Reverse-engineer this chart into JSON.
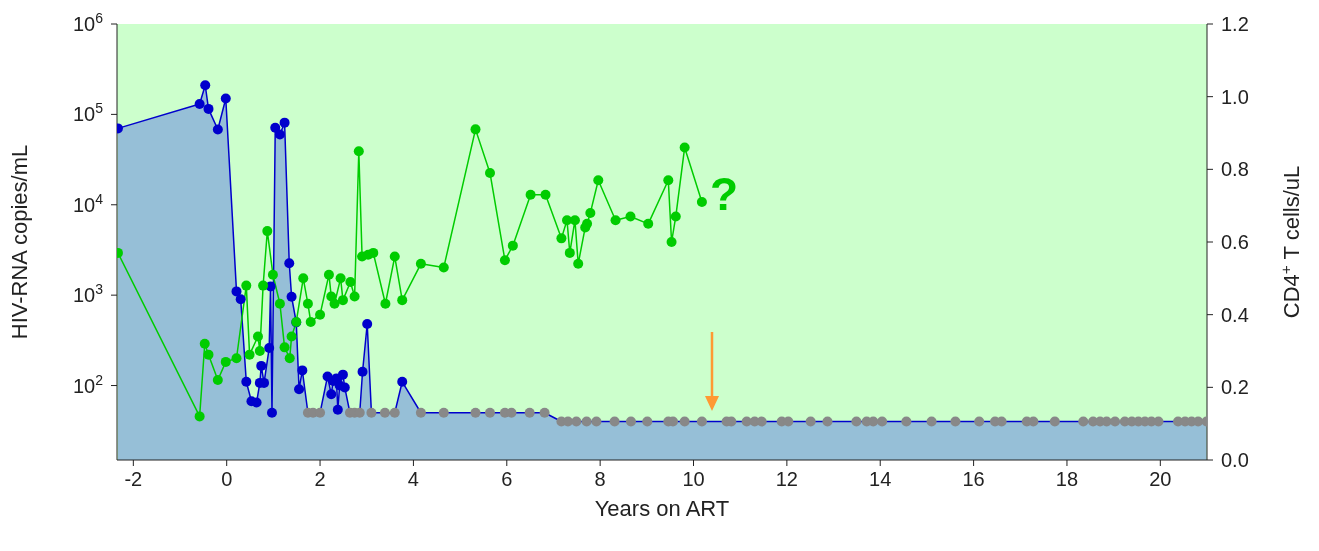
{
  "chart_data": {
    "type": "line",
    "xlabel": "Years on ART",
    "ylabel": "HIV-RNA copies/mL",
    "y2label": "CD4$^{+}$ T cells/uL",
    "annotations": [
      "?"
    ],
    "xlim": [
      -2.35,
      21
    ],
    "xticks": [
      -2,
      0,
      2,
      4,
      6,
      8,
      10,
      12,
      14,
      16,
      18,
      20
    ],
    "log": "y",
    "ylim": [
      15,
      1000000
    ],
    "yticks": [
      {
        "value": 100,
        "label": "10$^{2}$"
      },
      {
        "value": 1000,
        "label": "10$^{3}$"
      },
      {
        "value": 10000,
        "label": "10$^{4}$"
      },
      {
        "value": 100000,
        "label": "10$^{5}$"
      },
      {
        "value": 1000000,
        "label": "10$^{6}$"
      }
    ],
    "y2lim": [
      0,
      1.2
    ],
    "y2ticks": [
      {
        "value": 0,
        "label": "0.0"
      },
      {
        "value": 0.2,
        "label": "0.2"
      },
      {
        "value": 0.4,
        "label": "0.4"
      },
      {
        "value": 0.6,
        "label": "0.6"
      },
      {
        "value": 0.8,
        "label": "0.8"
      },
      {
        "value": 1,
        "label": "1.0"
      },
      {
        "value": 1.2,
        "label": "1.2"
      }
    ],
    "bands": [
      {
        "axis": "x",
        "from": -2.35,
        "to": 21,
        "color": "#ccffcc"
      }
    ],
    "marker": "circle",
    "line_style": "solid",
    "series": [
      {
        "type": "area",
        "axis": "y",
        "color": "#0000cc",
        "x": [
          -2.33,
          -0.58,
          -0.46,
          -0.39,
          -0.19,
          -0.02,
          0.21,
          0.3,
          0.42,
          0.53,
          0.64,
          0.71,
          0.74,
          0.8,
          0.91,
          0.94,
          0.97,
          1.04,
          1.14,
          1.24,
          1.34,
          1.39,
          1.49,
          1.55,
          1.62,
          1.74,
          1.85,
          2.0,
          2.16,
          2.24,
          2.28,
          2.35,
          2.38,
          2.42,
          2.49,
          2.53,
          2.64,
          2.74,
          2.85,
          2.91,
          3.01,
          3.1,
          3.39,
          3.6,
          3.76,
          4.16,
          4.65,
          5.33,
          5.64,
          5.96,
          6.1,
          6.49,
          6.81,
          7.17,
          7.31,
          7.49,
          7.71,
          7.92,
          8.31,
          8.66,
          9.01,
          9.46,
          9.56,
          9.81,
          10.18,
          10.71,
          10.81,
          11.14,
          11.31,
          11.46,
          11.89,
          12.03,
          12.51,
          12.87,
          13.49,
          13.71,
          13.85,
          14.04,
          14.56,
          15.1,
          15.61,
          16.12,
          16.46,
          16.6,
          17.14,
          17.28,
          17.74,
          18.35,
          18.56,
          18.71,
          18.85,
          19.03,
          19.24,
          19.39,
          19.53,
          19.67,
          19.81,
          19.96,
          20.38,
          20.53,
          20.67,
          20.81,
          20.99
        ],
        "values": [
          70000,
          130000,
          210000,
          115000,
          68000,
          150000,
          1100,
          900,
          110,
          67,
          65,
          107,
          165,
          107,
          260,
          1250,
          50,
          71000,
          60000,
          81000,
          2250,
          960,
          500,
          91,
          147,
          50,
          50,
          50,
          126,
          80,
          112,
          120,
          54,
          100,
          132,
          95,
          50,
          50,
          50,
          142,
          480,
          50,
          50,
          50,
          110,
          50,
          50,
          50,
          50,
          50,
          50,
          50,
          50,
          40,
          40,
          40,
          40,
          40,
          40,
          40,
          40,
          40,
          40,
          40,
          40,
          40,
          40,
          40,
          40,
          40,
          40,
          40,
          40,
          40,
          40,
          40,
          40,
          40,
          40,
          40,
          40,
          40,
          40,
          40,
          40,
          40,
          40,
          40,
          40,
          40,
          40,
          40,
          40,
          40,
          40,
          40,
          40,
          40,
          40,
          40,
          40,
          40,
          40
        ],
        "colors": [
          "#0000cc",
          "#0000cc",
          "#0000cc",
          "#0000cc",
          "#0000cc",
          "#0000cc",
          "#0000cc",
          "#0000cc",
          "#0000cc",
          "#0000cc",
          "#0000cc",
          "#0000cc",
          "#0000cc",
          "#0000cc",
          "#0000cc",
          "#0000cc",
          "#0000cc",
          "#0000cc",
          "#0000cc",
          "#0000cc",
          "#0000cc",
          "#0000cc",
          "#0000cc",
          "#0000cc",
          "#0000cc",
          "#888888",
          "#888888",
          "#888888",
          "#0000cc",
          "#0000cc",
          "#0000cc",
          "#0000cc",
          "#0000cc",
          "#0000cc",
          "#0000cc",
          "#0000cc",
          "#888888",
          "#888888",
          "#888888",
          "#0000cc",
          "#0000cc",
          "#888888",
          "#888888",
          "#888888",
          "#0000cc",
          "#888888",
          "#888888",
          "#888888",
          "#888888",
          "#888888",
          "#888888",
          "#888888",
          "#888888",
          "#888888",
          "#888888",
          "#888888",
          "#888888",
          "#888888",
          "#888888",
          "#888888",
          "#888888",
          "#888888",
          "#888888",
          "#888888",
          "#888888",
          "#888888",
          "#888888",
          "#888888",
          "#888888",
          "#888888",
          "#888888",
          "#888888",
          "#888888",
          "#888888",
          "#888888",
          "#888888",
          "#888888",
          "#888888",
          "#888888",
          "#888888",
          "#888888",
          "#888888",
          "#888888",
          "#888888",
          "#888888",
          "#888888",
          "#888888",
          "#888888",
          "#888888",
          "#888888",
          "#888888",
          "#888888",
          "#888888",
          "#888888",
          "#888888",
          "#888888",
          "#888888",
          "#888888",
          "#888888",
          "#888888",
          "#888888",
          "#888888",
          "#888888"
        ]
      },
      {
        "type": "line",
        "axis": "y2",
        "color": "#00cc00",
        "x": [
          -2.33,
          -0.58,
          -0.47,
          -0.39,
          -0.19,
          -0.02,
          0.21,
          0.42,
          0.49,
          0.67,
          0.71,
          0.78,
          0.87,
          0.99,
          1.14,
          1.24,
          1.35,
          1.39,
          1.49,
          1.64,
          1.74,
          1.8,
          2.0,
          2.19,
          2.24,
          2.31,
          2.44,
          2.49,
          2.65,
          2.74,
          2.83,
          2.9,
          3.03,
          3.14,
          3.4,
          3.6,
          3.76,
          4.16,
          4.65,
          5.33,
          5.64,
          5.96,
          6.13,
          6.51,
          6.83,
          7.17,
          7.29,
          7.35,
          7.46,
          7.53,
          7.68,
          7.72,
          7.79,
          7.96,
          8.33,
          8.65,
          9.03,
          9.46,
          9.53,
          9.62,
          9.81,
          10.18
        ],
        "values": [
          0.57,
          0.12,
          0.32,
          0.29,
          0.22,
          0.27,
          0.28,
          0.48,
          0.29,
          0.34,
          0.3,
          0.48,
          0.63,
          0.51,
          0.43,
          0.31,
          0.28,
          0.34,
          0.38,
          0.5,
          0.43,
          0.38,
          0.4,
          0.51,
          0.45,
          0.43,
          0.5,
          0.44,
          0.49,
          0.45,
          0.85,
          0.56,
          0.565,
          0.57,
          0.43,
          0.56,
          0.44,
          0.54,
          0.53,
          0.91,
          0.79,
          0.55,
          0.59,
          0.73,
          0.73,
          0.61,
          0.66,
          0.57,
          0.66,
          0.54,
          0.64,
          0.65,
          0.68,
          0.77,
          0.66,
          0.67,
          0.65,
          0.77,
          0.6,
          0.67,
          0.86,
          0.71
        ]
      }
    ]
  }
}
